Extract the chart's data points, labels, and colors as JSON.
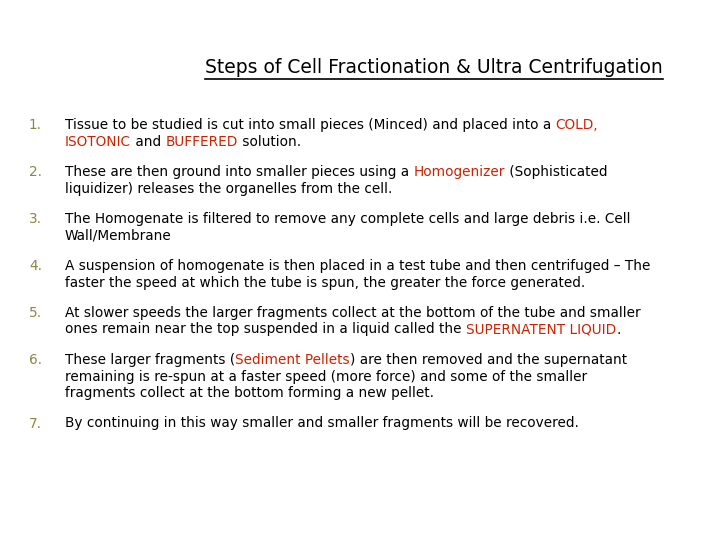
{
  "title": "Steps of Cell Fractionation & Ultra Centrifugation",
  "background_color": "#ffffff",
  "title_color": "#000000",
  "title_fontsize": 13.5,
  "number_color": "#888840",
  "text_color": "#000000",
  "highlight_red": "#cc2200",
  "figsize": [
    7.2,
    5.4
  ],
  "dpi": 100,
  "steps": [
    {
      "num": "1.",
      "lines": [
        [
          {
            "text": "Tissue to be studied is cut into small pieces (Minced) and placed into a ",
            "color": "#000000"
          },
          {
            "text": "COLD,",
            "color": "#cc2200"
          }
        ],
        [
          {
            "text": "ISOTONIC",
            "color": "#cc2200"
          },
          {
            "text": " and ",
            "color": "#000000"
          },
          {
            "text": "BUFFERED",
            "color": "#cc2200"
          },
          {
            "text": " solution.",
            "color": "#000000"
          }
        ]
      ]
    },
    {
      "num": "2.",
      "lines": [
        [
          {
            "text": "These are then ground into smaller pieces using a ",
            "color": "#000000"
          },
          {
            "text": "Homogenizer",
            "color": "#cc2200"
          },
          {
            "text": " (Sophisticated",
            "color": "#000000"
          }
        ],
        [
          {
            "text": "liquidizer) releases the organelles from the cell.",
            "color": "#000000"
          }
        ]
      ]
    },
    {
      "num": "3.",
      "lines": [
        [
          {
            "text": "The Homogenate is filtered to remove any complete cells and large debris i.e. Cell",
            "color": "#000000"
          }
        ],
        [
          {
            "text": "Wall/Membrane",
            "color": "#000000"
          }
        ]
      ]
    },
    {
      "num": "4.",
      "lines": [
        [
          {
            "text": "A suspension of homogenate is then placed in a test tube and then centrifuged – The",
            "color": "#000000"
          }
        ],
        [
          {
            "text": "faster the speed at which the tube is spun, the greater the force generated.",
            "color": "#000000"
          }
        ]
      ]
    },
    {
      "num": "5.",
      "lines": [
        [
          {
            "text": "At slower speeds the larger fragments collect at the bottom of the tube and smaller",
            "color": "#000000"
          }
        ],
        [
          {
            "text": "ones remain near the top suspended in a liquid called the ",
            "color": "#000000"
          },
          {
            "text": "SUPERNATENT LIQUID",
            "color": "#cc2200"
          },
          {
            "text": ".",
            "color": "#000000"
          }
        ]
      ]
    },
    {
      "num": "6.",
      "lines": [
        [
          {
            "text": "These larger fragments (",
            "color": "#000000"
          },
          {
            "text": "Sediment Pellets",
            "color": "#cc2200"
          },
          {
            "text": ") are then removed and the supernatant",
            "color": "#000000"
          }
        ],
        [
          {
            "text": "remaining is re-spun at a faster speed (more force) and some of the smaller",
            "color": "#000000"
          }
        ],
        [
          {
            "text": "fragments collect at the bottom forming a new pellet.",
            "color": "#000000"
          }
        ]
      ]
    },
    {
      "num": "7.",
      "lines": [
        [
          {
            "text": "By continuing in this way smaller and smaller fragments will be recovered.",
            "color": "#000000"
          }
        ]
      ]
    }
  ]
}
